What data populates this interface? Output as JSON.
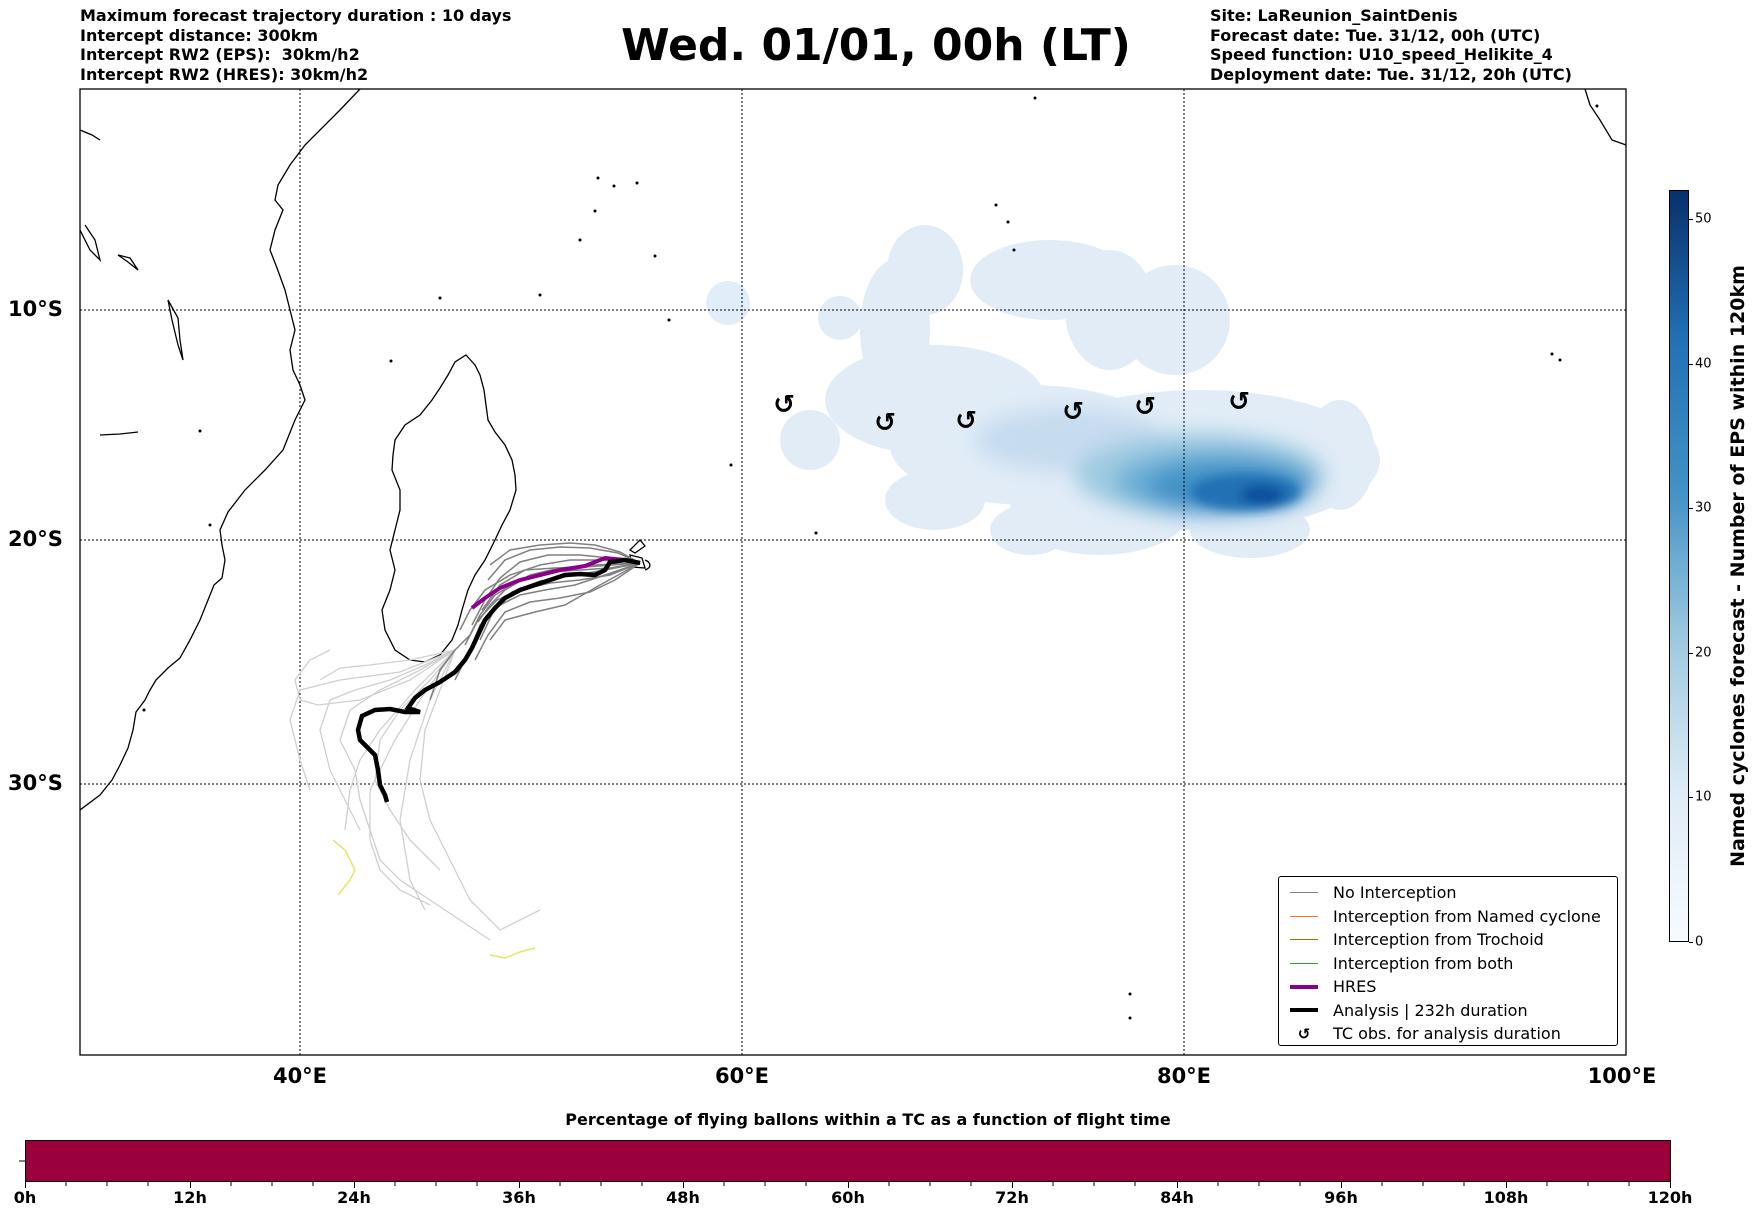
{
  "header_left": [
    "Maximum forecast trajectory duration : 10 days",
    "Intercept distance: 300km",
    "Intercept RW2 (EPS):  30km/h2",
    "Intercept RW2 (HRES): 30km/h2"
  ],
  "header_right": [
    "Site: LaReunion_SaintDenis",
    "Forecast date: Tue. 31/12, 00h (UTC)",
    "Speed function: U10_speed_Helikite_4",
    "Deployment date: Tue. 31/12, 20h (UTC)"
  ],
  "title": "Wed. 01/01, 00h (LT)",
  "map": {
    "lat_labels": [
      "10°S",
      "20°S",
      "30°S"
    ],
    "lon_labels": [
      "40°E",
      "60°E",
      "80°E",
      "100°E"
    ],
    "grid": true,
    "tc_symbol": "↺",
    "colors": {
      "no_interception": "#808080",
      "named_cyclone": "#ff6a2a",
      "trochoid": "#808000",
      "both": "#2ca02c",
      "hres": "#8b008b",
      "analysis": "#000000",
      "density_low": "#deebf7",
      "density_high": "#08306b"
    }
  },
  "legend": {
    "items": [
      {
        "label": "No Interception",
        "color": "#808080",
        "kind": "thin"
      },
      {
        "label": "Interception from Named cyclone",
        "color": "#ff6a2a",
        "kind": "thin"
      },
      {
        "label": "Interception from Trochoid",
        "color": "#808000",
        "kind": "thin"
      },
      {
        "label": "Interception from both",
        "color": "#2ca02c",
        "kind": "thin"
      },
      {
        "label": "HRES",
        "color": "#8b008b",
        "kind": "thick"
      },
      {
        "label": "Analysis | 232h duration",
        "color": "#000000",
        "kind": "thick"
      },
      {
        "label": "TC obs. for analysis duration",
        "color": "#000000",
        "kind": "symbol",
        "symbol": "↺"
      }
    ]
  },
  "colorbar": {
    "label": "Named cyclones forecast - Number of EPS within 120km",
    "range": [
      0,
      52
    ],
    "ticks": [
      "0",
      "10",
      "20",
      "30",
      "40",
      "50"
    ],
    "colormap": "Blues"
  },
  "time_bar": {
    "title": "Percentage of flying ballons within a TC as a function of flight time",
    "ticks": [
      "0h",
      "12h",
      "24h",
      "36h",
      "48h",
      "60h",
      "72h",
      "84h",
      "96h",
      "108h",
      "120h"
    ],
    "fill_color": "#9c003c",
    "fill_fraction": 1.0
  }
}
